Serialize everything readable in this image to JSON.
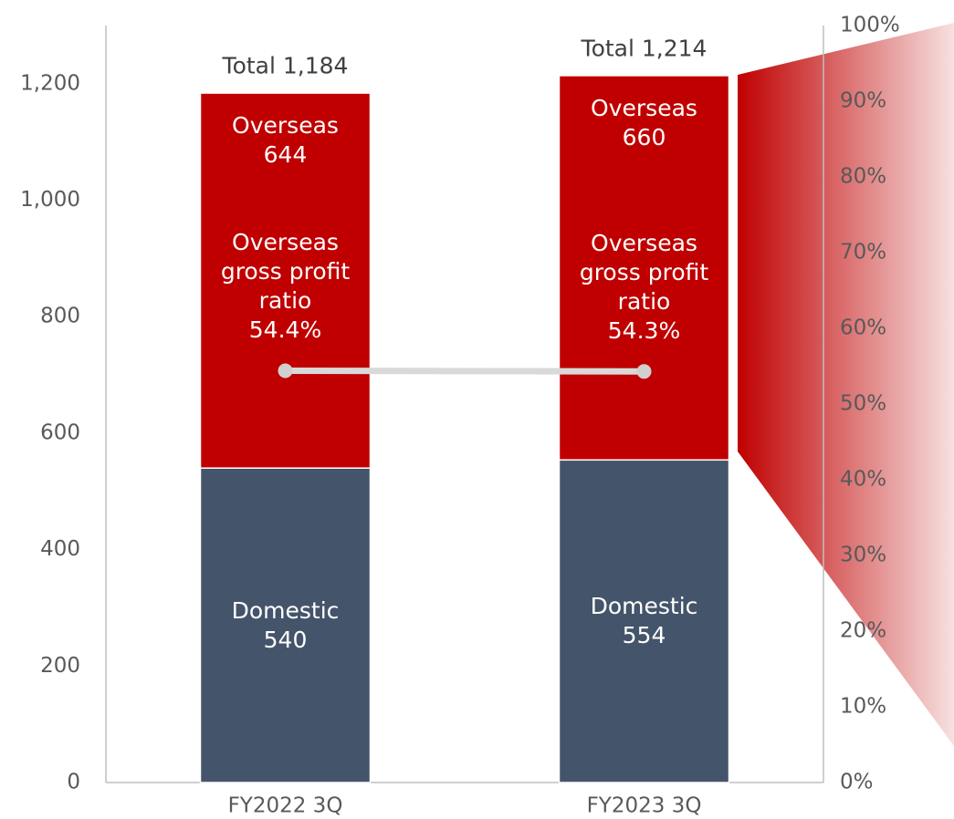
{
  "chart_data": {
    "type": "bar",
    "stacked": true,
    "categories": [
      "FY2022 3Q",
      "FY2023 3Q"
    ],
    "series": [
      {
        "name": "Domestic",
        "color": "#44546a",
        "values": [
          540,
          554
        ]
      },
      {
        "name": "Overseas",
        "color": "#c00000",
        "values": [
          644,
          660
        ]
      },
      {
        "name": "Overseas gross profit ratio",
        "type": "line",
        "axis": "y2",
        "color": "#d9d9d9",
        "values": [
          54.4,
          54.3
        ],
        "value_labels": [
          "54.4%",
          "54.3%"
        ]
      }
    ],
    "total_labels": [
      "Total 1,184",
      "Total 1,214"
    ],
    "ylim": [
      0,
      1300
    ],
    "yticks": [
      0,
      200,
      400,
      600,
      800,
      {
        "value": 1000,
        "label": "1,000"
      },
      {
        "value": 1200,
        "label": "1,200"
      }
    ],
    "y2lim": [
      0,
      100
    ],
    "y2ticks": [
      {
        "value": 0,
        "label": "0%"
      },
      {
        "value": 10,
        "label": "10%"
      },
      {
        "value": 20,
        "label": "20%"
      },
      {
        "value": 30,
        "label": "30%"
      },
      {
        "value": 40,
        "label": "40%"
      },
      {
        "value": 50,
        "label": "50%"
      },
      {
        "value": 60,
        "label": "60%"
      },
      {
        "value": 70,
        "label": "70%"
      },
      {
        "value": 80,
        "label": "80%"
      },
      {
        "value": 90,
        "label": "90%"
      },
      {
        "value": 100,
        "label": "100%"
      }
    ],
    "grid": false
  }
}
